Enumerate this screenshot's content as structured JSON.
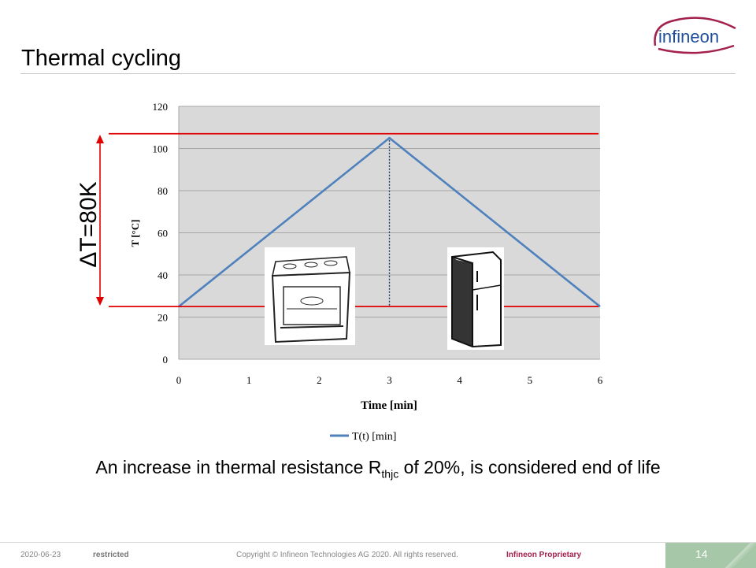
{
  "slide": {
    "title": "Thermal cycling",
    "logo_text": "infineon",
    "caption_prefix": "An increase in thermal resistance R",
    "caption_sub": "thjc",
    "caption_suffix": " of 20%, is considered end of life",
    "delta_label": "ΔT=80K",
    "oven_icon": "oven-icon",
    "fridge_icon": "fridge-icon"
  },
  "footer": {
    "date": "2020-06-23",
    "classification": "restricted",
    "copyright": "Copyright © Infineon Technologies AG 2020. All rights reserved.",
    "proprietary": "Infineon Proprietary",
    "page_number": "14"
  },
  "colors": {
    "series": "#4f81bd",
    "limit_lines": "#e00000",
    "plot_bg": "#d9d9d9",
    "brand": "#a3214a",
    "brand_blue": "#1f4e9a"
  },
  "chart_data": {
    "type": "line",
    "xlabel": "Time [min]",
    "ylabel": "T [°C]",
    "xlim": [
      0,
      6
    ],
    "ylim": [
      0,
      120
    ],
    "x_ticks": [
      0,
      1,
      2,
      3,
      4,
      5,
      6
    ],
    "y_ticks": [
      0,
      20,
      40,
      60,
      80,
      100,
      120
    ],
    "grid": true,
    "legend_position": "bottom",
    "series": [
      {
        "name": "T(t) [min]",
        "x": [
          0,
          3,
          6
        ],
        "y": [
          25,
          105,
          25
        ]
      }
    ],
    "reference_lines": [
      {
        "axis": "y",
        "value": 107,
        "style": "solid"
      },
      {
        "axis": "y",
        "value": 25,
        "style": "solid"
      },
      {
        "axis": "x",
        "value": 3,
        "style": "dotted"
      }
    ]
  }
}
